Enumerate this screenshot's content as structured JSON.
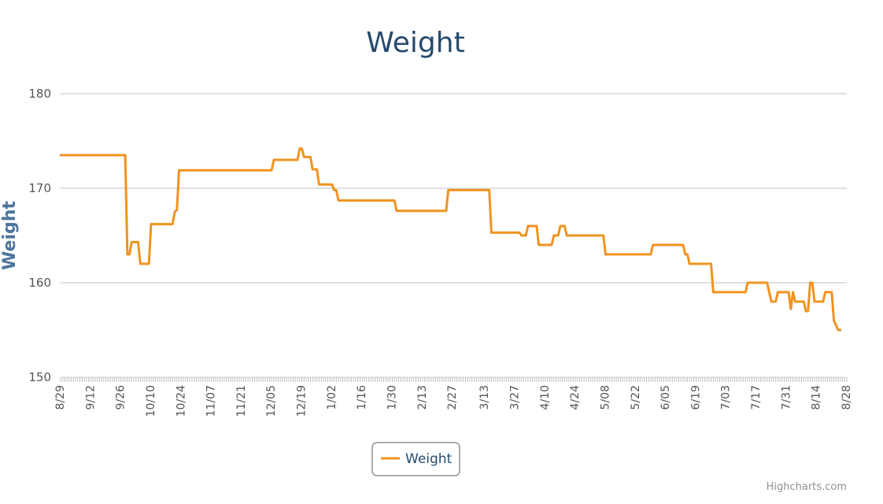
{
  "chart_data": {
    "type": "line",
    "title": "Weight",
    "ylabel": "Weight",
    "xlabel": "",
    "ylim": [
      150,
      180
    ],
    "y_ticks": [
      150,
      160,
      170,
      180
    ],
    "grid": true,
    "legend": "bottom-center",
    "credits": "Highcharts.com",
    "x_tick_labels": [
      "8/29",
      "9/12",
      "9/26",
      "10/10",
      "10/24",
      "11/07",
      "11/21",
      "12/05",
      "12/19",
      "1/02",
      "1/16",
      "1/30",
      "2/13",
      "2/27",
      "3/13",
      "3/27",
      "4/10",
      "4/24",
      "5/08",
      "5/22",
      "6/05",
      "6/19",
      "7/03",
      "7/17",
      "7/31",
      "8/14",
      "8/28"
    ],
    "series": [
      {
        "name": "Weight",
        "color": "#f0931f",
        "points": [
          [
            "8/29",
            173.5
          ],
          [
            "9/28",
            173.5
          ],
          [
            "9/29",
            163.0
          ],
          [
            "9/30",
            163.0
          ],
          [
            "10/01",
            164.3
          ],
          [
            "10/04",
            164.3
          ],
          [
            "10/05",
            162.0
          ],
          [
            "10/09",
            162.0
          ],
          [
            "10/10",
            166.2
          ],
          [
            "10/20",
            166.2
          ],
          [
            "10/21",
            167.5
          ],
          [
            "10/22",
            167.7
          ],
          [
            "10/23",
            171.9
          ],
          [
            "12/05",
            171.9
          ],
          [
            "12/06",
            173.0
          ],
          [
            "12/17",
            173.0
          ],
          [
            "12/18",
            174.2
          ],
          [
            "12/19",
            174.2
          ],
          [
            "12/20",
            173.3
          ],
          [
            "12/23",
            173.3
          ],
          [
            "12/24",
            172.0
          ],
          [
            "12/26",
            172.0
          ],
          [
            "12/27",
            170.4
          ],
          [
            "1/02",
            170.4
          ],
          [
            "1/03",
            169.8
          ],
          [
            "1/04",
            169.8
          ],
          [
            "1/05",
            168.7
          ],
          [
            "1/31",
            168.7
          ],
          [
            "2/01",
            167.6
          ],
          [
            "2/24",
            167.6
          ],
          [
            "2/25",
            169.8
          ],
          [
            "3/15",
            169.8
          ],
          [
            "3/16",
            165.3
          ],
          [
            "3/29",
            165.3
          ],
          [
            "3/30",
            165.0
          ],
          [
            "4/01",
            165.0
          ],
          [
            "4/02",
            166.0
          ],
          [
            "4/06",
            166.0
          ],
          [
            "4/07",
            164.0
          ],
          [
            "4/13",
            164.0
          ],
          [
            "4/14",
            165.0
          ],
          [
            "4/16",
            165.0
          ],
          [
            "4/17",
            166.0
          ],
          [
            "4/19",
            166.0
          ],
          [
            "4/20",
            165.0
          ],
          [
            "5/07",
            165.0
          ],
          [
            "5/08",
            163.0
          ],
          [
            "5/29",
            163.0
          ],
          [
            "5/30",
            164.0
          ],
          [
            "6/13",
            164.0
          ],
          [
            "6/14",
            163.0
          ],
          [
            "6/15",
            163.0
          ],
          [
            "6/16",
            162.0
          ],
          [
            "6/26",
            162.0
          ],
          [
            "6/27",
            159.0
          ],
          [
            "7/12",
            159.0
          ],
          [
            "7/13",
            160.0
          ],
          [
            "7/22",
            160.0
          ],
          [
            "7/24",
            158.0
          ],
          [
            "7/26",
            158.0
          ],
          [
            "7/27",
            159.0
          ],
          [
            "8/01",
            159.0
          ],
          [
            "8/02",
            157.2
          ],
          [
            "8/03",
            159.0
          ],
          [
            "8/04",
            158.0
          ],
          [
            "8/08",
            158.0
          ],
          [
            "8/09",
            157.0
          ],
          [
            "8/10",
            157.0
          ],
          [
            "8/11",
            160.0
          ],
          [
            "8/12",
            160.0
          ],
          [
            "8/13",
            158.0
          ],
          [
            "8/17",
            158.0
          ],
          [
            "8/18",
            159.0
          ],
          [
            "8/21",
            159.0
          ],
          [
            "8/22",
            156.0
          ],
          [
            "8/23",
            155.5
          ],
          [
            "8/24",
            155.0
          ],
          [
            "8/25",
            155.0
          ]
        ]
      }
    ]
  }
}
